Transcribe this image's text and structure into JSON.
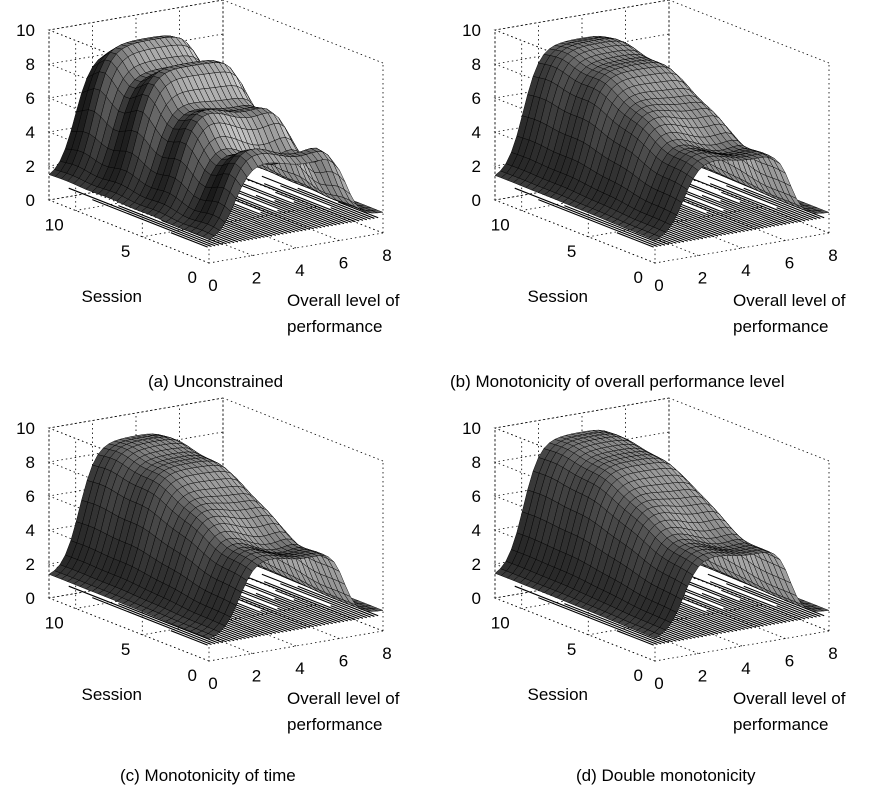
{
  "chart_data": [
    {
      "type": "surface",
      "caption": "(a) Unconstrained",
      "xlabel_lines": [
        "Overall level of",
        "performance"
      ],
      "ylabel": "Session",
      "xlim": [
        0,
        8
      ],
      "ylim": [
        0,
        12
      ],
      "zlim": [
        0,
        10
      ],
      "x_ticks": [
        "0",
        "2",
        "4",
        "6",
        "8"
      ],
      "y_ticks": [
        "0",
        "5",
        "10"
      ],
      "z_ticks": [
        "0",
        "2",
        "4",
        "6",
        "8",
        "10"
      ],
      "grid": true,
      "surface": {
        "base_level": 1.2,
        "plateau_level": 8.6,
        "ridge_amplitude": 0.9,
        "mid_dip": 1.4,
        "rise_x": 1.2,
        "fall_x": 6.3
      }
    },
    {
      "type": "surface",
      "caption": "(b) Monotonicity of overall performance level",
      "xlabel_lines": [
        "Overall level of",
        "performance"
      ],
      "ylabel": "Session",
      "xlim": [
        0,
        8
      ],
      "ylim": [
        0,
        12
      ],
      "zlim": [
        0,
        10
      ],
      "x_ticks": [
        "0",
        "2",
        "4",
        "6",
        "8"
      ],
      "y_ticks": [
        "0",
        "5",
        "10"
      ],
      "z_ticks": [
        "0",
        "2",
        "4",
        "6",
        "8",
        "10"
      ],
      "grid": true,
      "surface": {
        "base_level": 1.2,
        "plateau_level": 8.8,
        "ridge_amplitude": 0.2,
        "mid_dip": 1.1,
        "rise_x": 1.3,
        "fall_x": 6.2
      }
    },
    {
      "type": "surface",
      "caption": "(c) Monotonicity of time",
      "xlabel_lines": [
        "Overall level of",
        "performance"
      ],
      "ylabel": "Session",
      "xlim": [
        0,
        8
      ],
      "ylim": [
        0,
        12
      ],
      "zlim": [
        0,
        10
      ],
      "x_ticks": [
        "0",
        "2",
        "4",
        "6",
        "8"
      ],
      "y_ticks": [
        "0",
        "5",
        "10"
      ],
      "z_ticks": [
        "0",
        "2",
        "4",
        "6",
        "8",
        "10"
      ],
      "grid": true,
      "surface": {
        "base_level": 1.2,
        "plateau_level": 8.8,
        "ridge_amplitude": 0.15,
        "mid_dip": 1.2,
        "rise_x": 1.4,
        "fall_x": 6.2
      }
    },
    {
      "type": "surface",
      "caption": "(d) Double monotonicity",
      "xlabel_lines": [
        "Overall level of",
        "performance"
      ],
      "ylabel": "Session",
      "xlim": [
        0,
        8
      ],
      "ylim": [
        0,
        12
      ],
      "zlim": [
        0,
        10
      ],
      "x_ticks": [
        "0",
        "2",
        "4",
        "6",
        "8"
      ],
      "y_ticks": [
        "0",
        "5",
        "10"
      ],
      "z_ticks": [
        "0",
        "2",
        "4",
        "6",
        "8",
        "10"
      ],
      "grid": true,
      "surface": {
        "base_level": 1.2,
        "plateau_level": 9.0,
        "ridge_amplitude": 0.1,
        "mid_dip": 1.0,
        "rise_x": 1.3,
        "fall_x": 6.2
      }
    }
  ]
}
